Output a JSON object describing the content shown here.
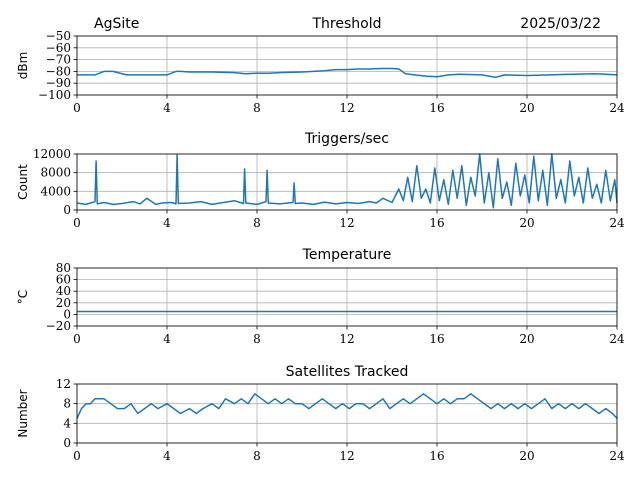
{
  "header": {
    "site": "AgSite",
    "date": "2025/03/22"
  },
  "colors": {
    "series": "#1f77b4",
    "grid": "#b0b0b0"
  },
  "chart_data": [
    {
      "type": "line",
      "title": "Threshold",
      "ylabel": "dBm",
      "xlim": [
        0,
        24
      ],
      "ylim": [
        -100,
        -50
      ],
      "xticks": [
        0,
        4,
        8,
        12,
        16,
        20,
        24
      ],
      "yticks": [
        -100,
        -90,
        -80,
        -70,
        -60,
        -50
      ],
      "ytick_labels": [
        "−100",
        "−90",
        "−80",
        "−70",
        "−60",
        "−50"
      ],
      "grid": true,
      "series": [
        {
          "x": [
            0,
            0.8,
            1.2,
            1.6,
            2.2,
            3,
            4,
            4.4,
            4.6,
            5,
            6,
            7,
            7.5,
            8,
            8.5,
            9,
            10,
            11,
            11.5,
            12,
            12.5,
            13,
            13.5,
            14,
            14.3,
            14.6,
            15,
            15.5,
            16,
            16.5,
            17,
            18,
            18.6,
            19,
            20,
            21,
            22,
            23,
            23.5,
            24
          ],
          "y": [
            -83,
            -83,
            -80,
            -80,
            -83,
            -83,
            -83,
            -80,
            -80,
            -80.5,
            -80.5,
            -81,
            -82,
            -81.5,
            -81.5,
            -81,
            -80.5,
            -79.5,
            -78.5,
            -78.5,
            -78,
            -78,
            -77.5,
            -77.5,
            -78,
            -82,
            -83,
            -84,
            -84.5,
            -83,
            -82.5,
            -83,
            -85,
            -83,
            -83.5,
            -83,
            -82.5,
            -82,
            -82.5,
            -83
          ]
        }
      ]
    },
    {
      "type": "line",
      "title": "Triggers/sec",
      "ylabel": "Count",
      "xlim": [
        0,
        24
      ],
      "ylim": [
        0,
        12000
      ],
      "xticks": [
        0,
        4,
        8,
        12,
        16,
        20,
        24
      ],
      "yticks": [
        0,
        4000,
        8000,
        12000
      ],
      "ytick_labels": [
        "0",
        "4000",
        "8000",
        "12000"
      ],
      "grid": true,
      "series": [
        {
          "x": [
            0,
            0.4,
            0.8,
            0.85,
            0.9,
            1.2,
            1.6,
            2,
            2.5,
            2.8,
            3.1,
            3.5,
            3.8,
            4.2,
            4.4,
            4.45,
            4.5,
            5,
            5.5,
            6,
            6.5,
            7,
            7.4,
            7.45,
            7.5,
            8,
            8.4,
            8.45,
            8.5,
            9,
            9.6,
            9.65,
            9.7,
            10,
            10.5,
            11,
            11.5,
            12,
            12.5,
            13,
            13.3,
            13.6,
            14,
            14.3,
            14.5,
            14.7,
            14.9,
            15.1,
            15.3,
            15.5,
            15.7,
            15.9,
            16.1,
            16.3,
            16.5,
            16.7,
            16.9,
            17.1,
            17.3,
            17.5,
            17.7,
            17.9,
            18.1,
            18.3,
            18.5,
            18.7,
            18.9,
            19.1,
            19.3,
            19.5,
            19.7,
            19.9,
            20.1,
            20.3,
            20.5,
            20.7,
            20.9,
            21.1,
            21.3,
            21.5,
            21.7,
            21.9,
            22.1,
            22.3,
            22.5,
            22.7,
            22.9,
            23.1,
            23.3,
            23.5,
            23.7,
            23.9,
            24
          ],
          "y": [
            1500,
            1200,
            1800,
            10500,
            1300,
            1600,
            1200,
            1400,
            1800,
            1300,
            2500,
            1200,
            1500,
            1600,
            1300,
            11800,
            1400,
            1500,
            1800,
            1200,
            1600,
            2000,
            1400,
            8800,
            1500,
            1200,
            1800,
            8500,
            1500,
            1300,
            1600,
            5800,
            1400,
            1500,
            1200,
            1700,
            1300,
            1600,
            1400,
            1800,
            1500,
            2500,
            1600,
            4500,
            2000,
            7000,
            1800,
            9500,
            2500,
            4500,
            1500,
            9000,
            2000,
            6500,
            1200,
            8500,
            2500,
            9500,
            1000,
            7000,
            3000,
            12000,
            1500,
            8000,
            500,
            11000,
            2500,
            6000,
            1000,
            10000,
            3000,
            7500,
            1500,
            11500,
            2000,
            8500,
            1000,
            12000,
            2500,
            6500,
            1500,
            10500,
            3000,
            7000,
            1500,
            9000,
            2500,
            5500,
            1500,
            8500,
            2000,
            6500,
            1500
          ]
        }
      ]
    },
    {
      "type": "line",
      "title": "Temperature",
      "ylabel": "°C",
      "xlim": [
        0,
        24
      ],
      "ylim": [
        -20,
        80
      ],
      "xticks": [
        0,
        4,
        8,
        12,
        16,
        20,
        24
      ],
      "yticks": [
        -20,
        0,
        20,
        40,
        60,
        80
      ],
      "ytick_labels": [
        "−20",
        "0",
        "20",
        "40",
        "60",
        "80"
      ],
      "grid": true,
      "series": [
        {
          "x": [
            0,
            24
          ],
          "y": [
            5,
            5
          ]
        }
      ]
    },
    {
      "type": "line",
      "title": "Satellites Tracked",
      "ylabel": "Number",
      "xlim": [
        0,
        24
      ],
      "ylim": [
        0,
        12
      ],
      "xticks": [
        0,
        4,
        8,
        12,
        16,
        20,
        24
      ],
      "yticks": [
        0,
        4,
        8,
        12
      ],
      "ytick_labels": [
        "0",
        "4",
        "8",
        "12"
      ],
      "grid": true,
      "series": [
        {
          "x": [
            0,
            0.2,
            0.4,
            0.6,
            0.8,
            1.2,
            1.5,
            1.8,
            2.1,
            2.4,
            2.7,
            3,
            3.3,
            3.6,
            4,
            4.3,
            4.6,
            5,
            5.3,
            5.6,
            6,
            6.3,
            6.6,
            7,
            7.3,
            7.6,
            7.9,
            8.2,
            8.5,
            8.8,
            9.1,
            9.4,
            9.7,
            10,
            10.3,
            10.6,
            10.9,
            11.2,
            11.5,
            11.8,
            12.1,
            12.4,
            12.7,
            13,
            13.3,
            13.6,
            13.9,
            14.2,
            14.5,
            14.8,
            15.1,
            15.4,
            15.7,
            16,
            16.3,
            16.6,
            16.9,
            17.2,
            17.5,
            17.8,
            18.1,
            18.4,
            18.7,
            19,
            19.3,
            19.6,
            19.9,
            20.2,
            20.5,
            20.8,
            21.1,
            21.4,
            21.7,
            22,
            22.3,
            22.6,
            22.9,
            23.2,
            23.5,
            23.8,
            24
          ],
          "y": [
            5,
            7,
            8,
            8,
            9,
            9,
            8,
            7,
            7,
            8,
            6,
            7,
            8,
            7,
            8,
            7,
            6,
            7,
            6,
            7,
            8,
            7,
            9,
            8,
            9,
            8,
            10,
            9,
            8,
            9,
            8,
            9,
            8,
            8,
            7,
            8,
            9,
            8,
            7,
            8,
            7,
            8,
            8,
            7,
            8,
            9,
            7,
            8,
            9,
            8,
            9,
            10,
            9,
            8,
            9,
            8,
            9,
            9,
            10,
            9,
            8,
            7,
            8,
            7,
            8,
            7,
            8,
            7,
            8,
            9,
            7,
            8,
            7,
            8,
            7,
            8,
            7,
            6,
            7,
            6,
            5
          ]
        }
      ]
    }
  ]
}
